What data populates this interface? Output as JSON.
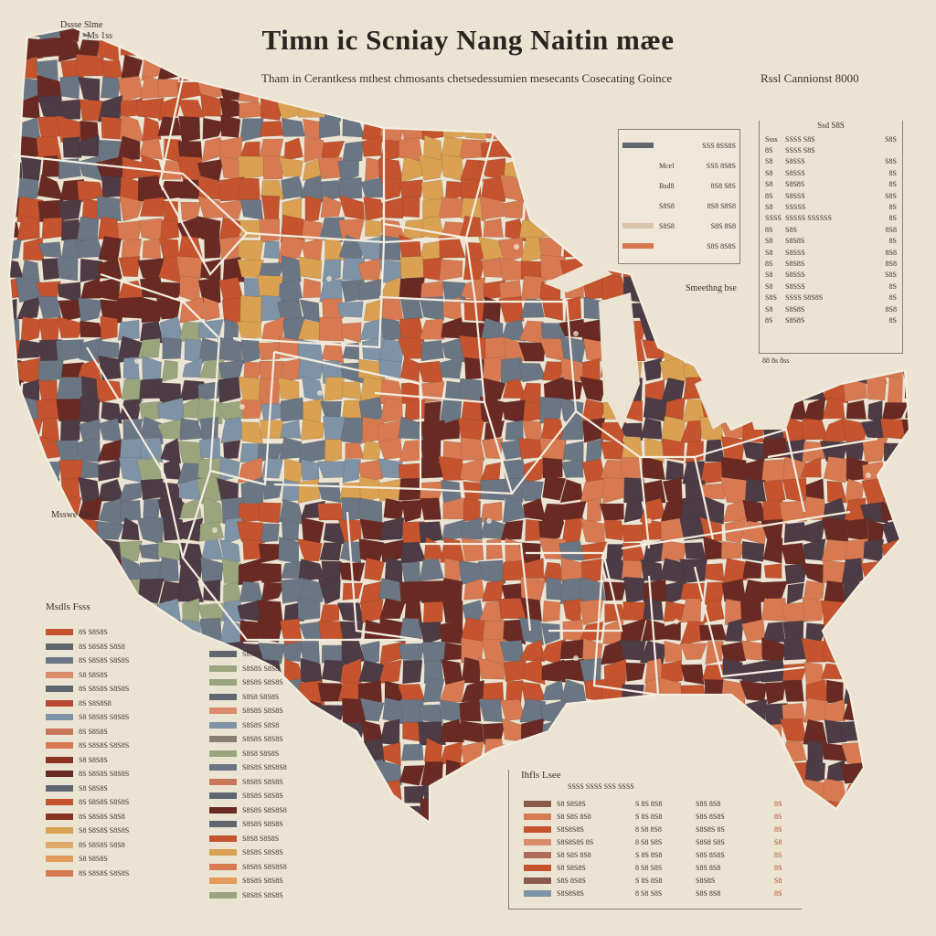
{
  "title": "Timn ic Scniay Nang Naitin mæe",
  "subtitle": "Tham in Cerantkess mthest chmosants chetsedessumien mesecants Cosecating Goince",
  "subtitle_right": "Rssl Cannionst 8000",
  "corner_label_1": "Dssse Slme",
  "corner_label_2": "Ms 1ss",
  "west_label": "Msswe Ms",
  "mid_label": "Smeethng bse",
  "stats_footer": "88 8s 8ss",
  "colors": {
    "background": "#ece4d3",
    "rust": "#c4532e",
    "terracotta": "#d77a52",
    "ochre": "#d9a151",
    "slate": "#6b7684",
    "blue_gray": "#7f93a6",
    "maroon": "#6a2a24",
    "plum": "#4d3b45",
    "sage": "#9aa57e",
    "cream": "#efe8d8"
  },
  "top_legend": {
    "rows": [
      {
        "color": "#5f6670",
        "label": "",
        "value": "SSS 8SS8S"
      },
      {
        "color": "#efe8d8",
        "label": "Mcel",
        "value": "SSS 8S8S"
      },
      {
        "color": "#efe8d8",
        "label": "Bsd8",
        "value": "8S8 S8S"
      },
      {
        "color": "#efe8d8",
        "label": "S8S8",
        "value": "8S8 S8S8"
      },
      {
        "color": "#d9c2a8",
        "label": "S8S8",
        "value": "S8S 8S8"
      },
      {
        "color": "#d77a52",
        "label": "",
        "value": "S8S 8S8S"
      }
    ]
  },
  "stats": {
    "header": "Ssd  S8S",
    "rows": [
      {
        "a": "Ssss",
        "b": "SSSS  S8S",
        "c": "S8S"
      },
      {
        "a": "8S",
        "b": "SSSS  S8S",
        "c": ""
      },
      {
        "a": "S8",
        "b": "S8SSS",
        "c": "S8S"
      },
      {
        "a": "S8",
        "b": "S8SSS",
        "c": "8S"
      },
      {
        "a": "S8",
        "b": "S8S8S",
        "c": "8S"
      },
      {
        "a": "8S",
        "b": "S8SSS",
        "c": "S8S"
      },
      {
        "a": "S8",
        "b": "SSSSS",
        "c": "8S"
      },
      {
        "a": "SSSS",
        "b": "SSSSS  SSSSSS",
        "c": "8S"
      },
      {
        "a": "8S",
        "b": "S8S",
        "c": "8S8"
      },
      {
        "a": "S8",
        "b": "S8S8S",
        "c": "8S"
      },
      {
        "a": "S8",
        "b": "S8SSS",
        "c": "8S8"
      },
      {
        "a": "8S",
        "b": "S8S8S",
        "c": "8S8"
      },
      {
        "a": "S8",
        "b": "S8SSS",
        "c": "S8S"
      },
      {
        "a": "S8",
        "b": "S8SSS",
        "c": "8S"
      },
      {
        "a": "S8S",
        "b": "SSSS  S8S8S",
        "c": "8S"
      },
      {
        "a": "S8",
        "b": "S8S8S",
        "c": "8S8"
      },
      {
        "a": "8S",
        "b": "S8S8S",
        "c": "8S"
      }
    ]
  },
  "left_legend_title": "Msdls Fsss",
  "left_legend": [
    {
      "color": "#c4532e",
      "label": "8S S8S8S"
    },
    {
      "color": "#5f6670",
      "label": "8S S8S8S S8S8"
    },
    {
      "color": "#6b7684",
      "label": "8S S8S8S S8S8S"
    },
    {
      "color": "#d98b6a",
      "label": "S8 S8S8S"
    },
    {
      "color": "#5f6670",
      "label": "8S S8S8S S8S8S"
    },
    {
      "color": "#b84a33",
      "label": "8S S8S8S8"
    },
    {
      "color": "#7f93a6",
      "label": "S8 S8S8S S8S8S"
    },
    {
      "color": "#c9775a",
      "label": "8S S8S8S"
    },
    {
      "color": "#d77a52",
      "label": "8S S8S8S S8S8S"
    },
    {
      "color": "#8a3324",
      "label": "S8 S8S8S"
    },
    {
      "color": "#6a2a24",
      "label": "8S S8S8S S8S8S"
    },
    {
      "color": "#5f6670",
      "label": "S8 S8S8S"
    },
    {
      "color": "#c4532e",
      "label": "8S S8S8S S8S8S"
    },
    {
      "color": "#8a3324",
      "label": "8S S8S8S S8S8"
    },
    {
      "color": "#d9a151",
      "label": "S8 S8S8S S8S8S"
    },
    {
      "color": "#e0a86a",
      "label": "8S S8S8S S8S8"
    },
    {
      "color": "#e39a5a",
      "label": "S8 S8S8S"
    },
    {
      "color": "#d77a52",
      "label": "8S S8S8S S8S8S"
    }
  ],
  "mid_legend": [
    {
      "color": "#5f6670",
      "label": "S8S8S"
    },
    {
      "color": "#9aa57e",
      "label": "S8S8S S8S8"
    },
    {
      "color": "#9aa57e",
      "label": "S8S8S S8S8S"
    },
    {
      "color": "#5f6670",
      "label": "S8S8 S8S8S"
    },
    {
      "color": "#d98b6a",
      "label": "S8S8S S8S8S"
    },
    {
      "color": "#7f93a6",
      "label": "S8S8S S8S8"
    },
    {
      "color": "#8a7f70",
      "label": "S8S8S S8S8S"
    },
    {
      "color": "#9aa57e",
      "label": "S8S8 S8S8S"
    },
    {
      "color": "#6b7684",
      "label": "S8S8S S8S8S8"
    },
    {
      "color": "#c9775a",
      "label": "S8S8S S8S8S"
    },
    {
      "color": "#5f6670",
      "label": "S8S8S S8S8S"
    },
    {
      "color": "#6a2a24",
      "label": "S8S8S S8S8S8"
    },
    {
      "color": "#5f6670",
      "label": "S8S8S S8S8S"
    },
    {
      "color": "#c4532e",
      "label": "S8S8 S8S8S"
    },
    {
      "color": "#d9a151",
      "label": "S8S8S S8S8S"
    },
    {
      "color": "#d77a52",
      "label": "S8S8S S8S8S8"
    },
    {
      "color": "#e39a5a",
      "label": "S8S8S S8S8S"
    },
    {
      "color": "#9aa57e",
      "label": "S8S8S S8S8S"
    }
  ],
  "bottom_legend": {
    "title": "Ihfls Lsee",
    "header": "SSSS SSSS SSS     SSSS",
    "rows": [
      {
        "color": "#8a5a4a",
        "c1": "S8 S8S8S",
        "c2": "S 8S 8S8",
        "c3": "S8S 8S8",
        "c4": "8S"
      },
      {
        "color": "#d77a52",
        "c1": "S8 S8S 8S8",
        "c2": "S 8S 8S8",
        "c3": "S8S 8S8S",
        "c4": "8S"
      },
      {
        "color": "#c4532e",
        "c1": "S8S8S8S",
        "c2": "8 S8 8S8",
        "c3": "S8S8S 8S",
        "c4": "8S"
      },
      {
        "color": "#d98b6a",
        "c1": "S8S8S8S 8S",
        "c2": "8 S8 S8S",
        "c3": "S8S8 S8S",
        "c4": "S8"
      },
      {
        "color": "#b06a5a",
        "c1": "S8 S8S 8S8",
        "c2": "S 8S 8S8",
        "c3": "S8S 8S8S",
        "c4": "8S"
      },
      {
        "color": "#c4532e",
        "c1": "S8 S8S8S",
        "c2": "8 S8 S8S",
        "c3": "S8S 8S8",
        "c4": "8S"
      },
      {
        "color": "#8a5a4a",
        "c1": "S8S 8S8S",
        "c2": "S 8S 8S8",
        "c3": "S8S8S",
        "c4": "S8"
      },
      {
        "color": "#7f93a6",
        "c1": "S8S8S8S",
        "c2": "8 S8 S8S",
        "c3": "S8S 8S8",
        "c4": "8S"
      }
    ]
  }
}
